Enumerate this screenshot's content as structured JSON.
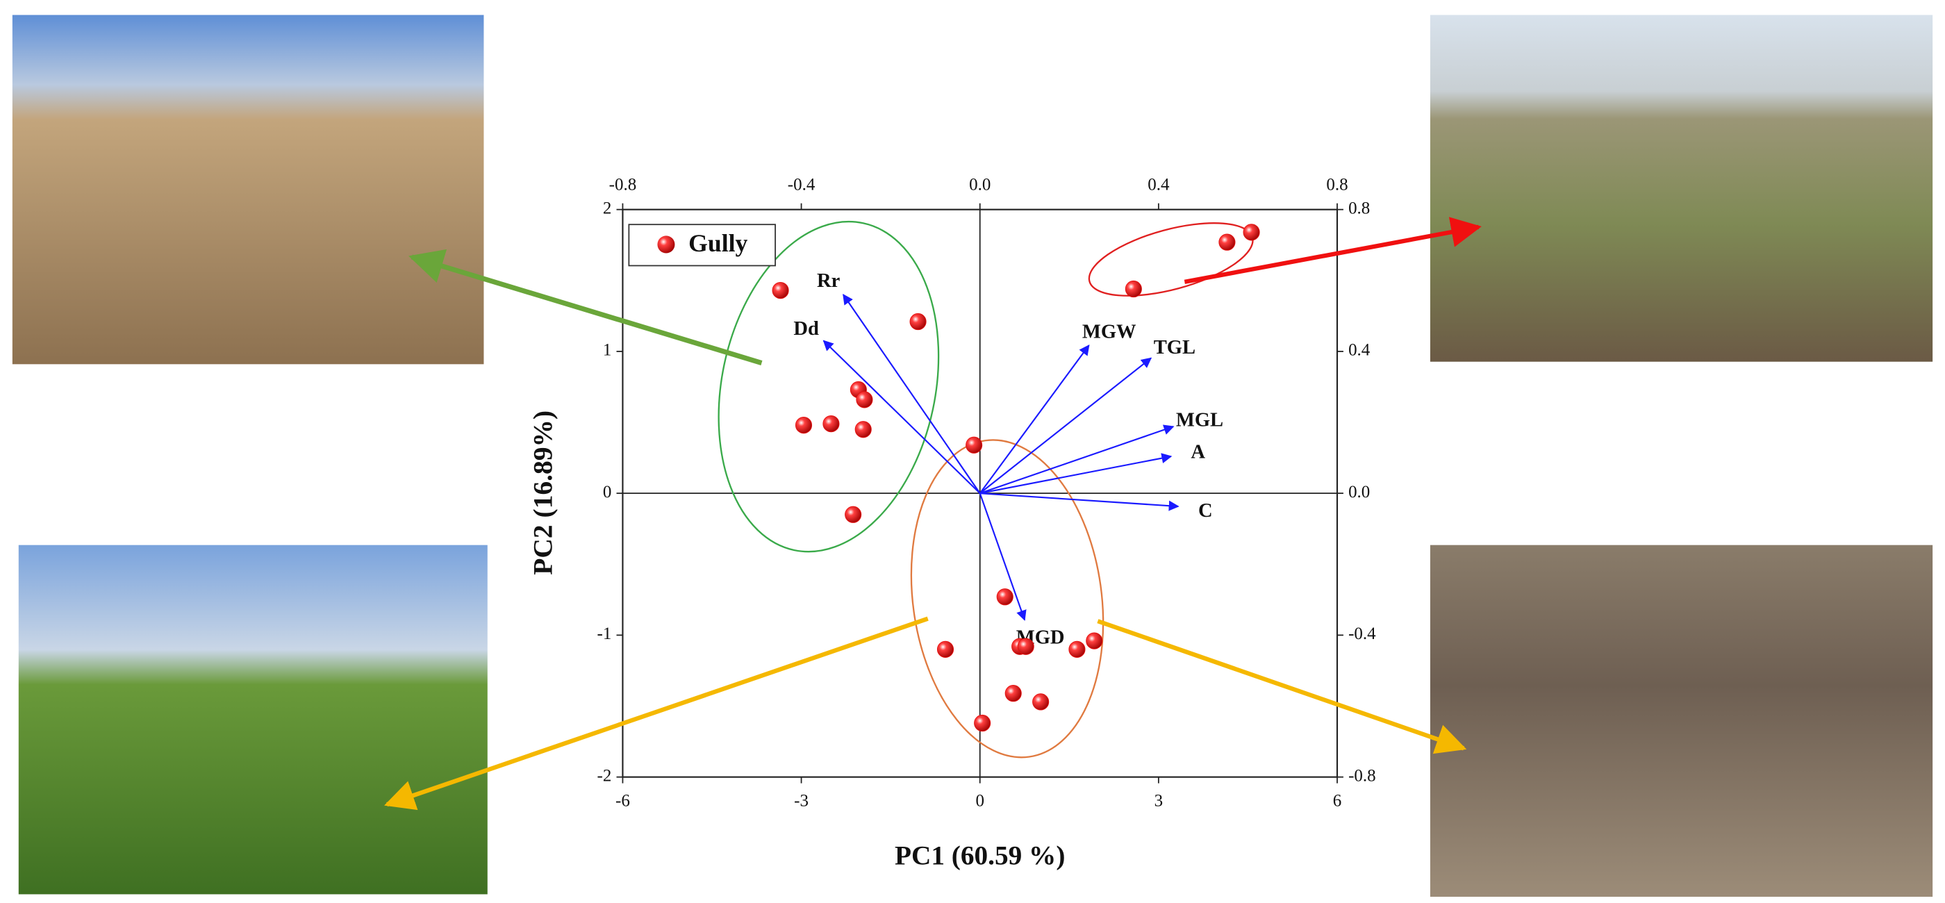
{
  "chart_data": {
    "type": "scatter",
    "xlabel": "PC1 (60.59 %)",
    "ylabel": "PC2 (16.89%)",
    "xlim": [
      -6,
      6
    ],
    "ylim": [
      -2,
      2
    ],
    "xticks": [
      -6,
      -3,
      0,
      3,
      6
    ],
    "yticks": [
      -2,
      -1,
      0,
      1,
      2
    ],
    "x2lim": [
      -0.8,
      0.8
    ],
    "y2lim": [
      -0.8,
      0.8
    ],
    "x2ticks": [
      -0.8,
      -0.4,
      {
        "value": 0,
        "label": "0.0"
      },
      0.4,
      0.8
    ],
    "y2ticks": [
      -0.8,
      -0.4,
      {
        "value": 0,
        "label": "0.0"
      },
      0.4,
      0.8
    ],
    "legend": "upper left",
    "series": [
      {
        "name": "Gully",
        "color": "#e8100f",
        "x": [
          -3.35,
          -1.04,
          -2.04,
          -1.94,
          -2.96,
          -2.5,
          -1.96,
          -2.13,
          -0.1,
          2.58,
          4.15,
          4.56,
          0.42,
          -0.58,
          0.67,
          0.77,
          1.63,
          1.92,
          0.56,
          1.02,
          0.04
        ],
        "y": [
          1.43,
          1.21,
          0.73,
          0.66,
          0.48,
          0.49,
          0.45,
          -0.15,
          0.34,
          1.44,
          1.77,
          1.84,
          -0.73,
          -1.1,
          -1.08,
          -1.08,
          -1.1,
          -1.04,
          -1.41,
          -1.47,
          -1.62
        ]
      }
    ],
    "loadings_color": "#1a1aff",
    "loadings": [
      {
        "name": "Rr",
        "x": -0.306,
        "y": 0.56
      },
      {
        "name": "Dd",
        "x": -0.35,
        "y": 0.43
      },
      {
        "name": "MGW",
        "x": 0.244,
        "y": 0.417
      },
      {
        "name": "TGL",
        "x": 0.383,
        "y": 0.381
      },
      {
        "name": "MGL",
        "x": 0.433,
        "y": 0.188
      },
      {
        "name": "A",
        "x": 0.428,
        "y": 0.104
      },
      {
        "name": "C",
        "x": 0.444,
        "y": -0.037
      },
      {
        "name": "MGD",
        "x": 0.1,
        "y": -0.357
      }
    ]
  }
}
